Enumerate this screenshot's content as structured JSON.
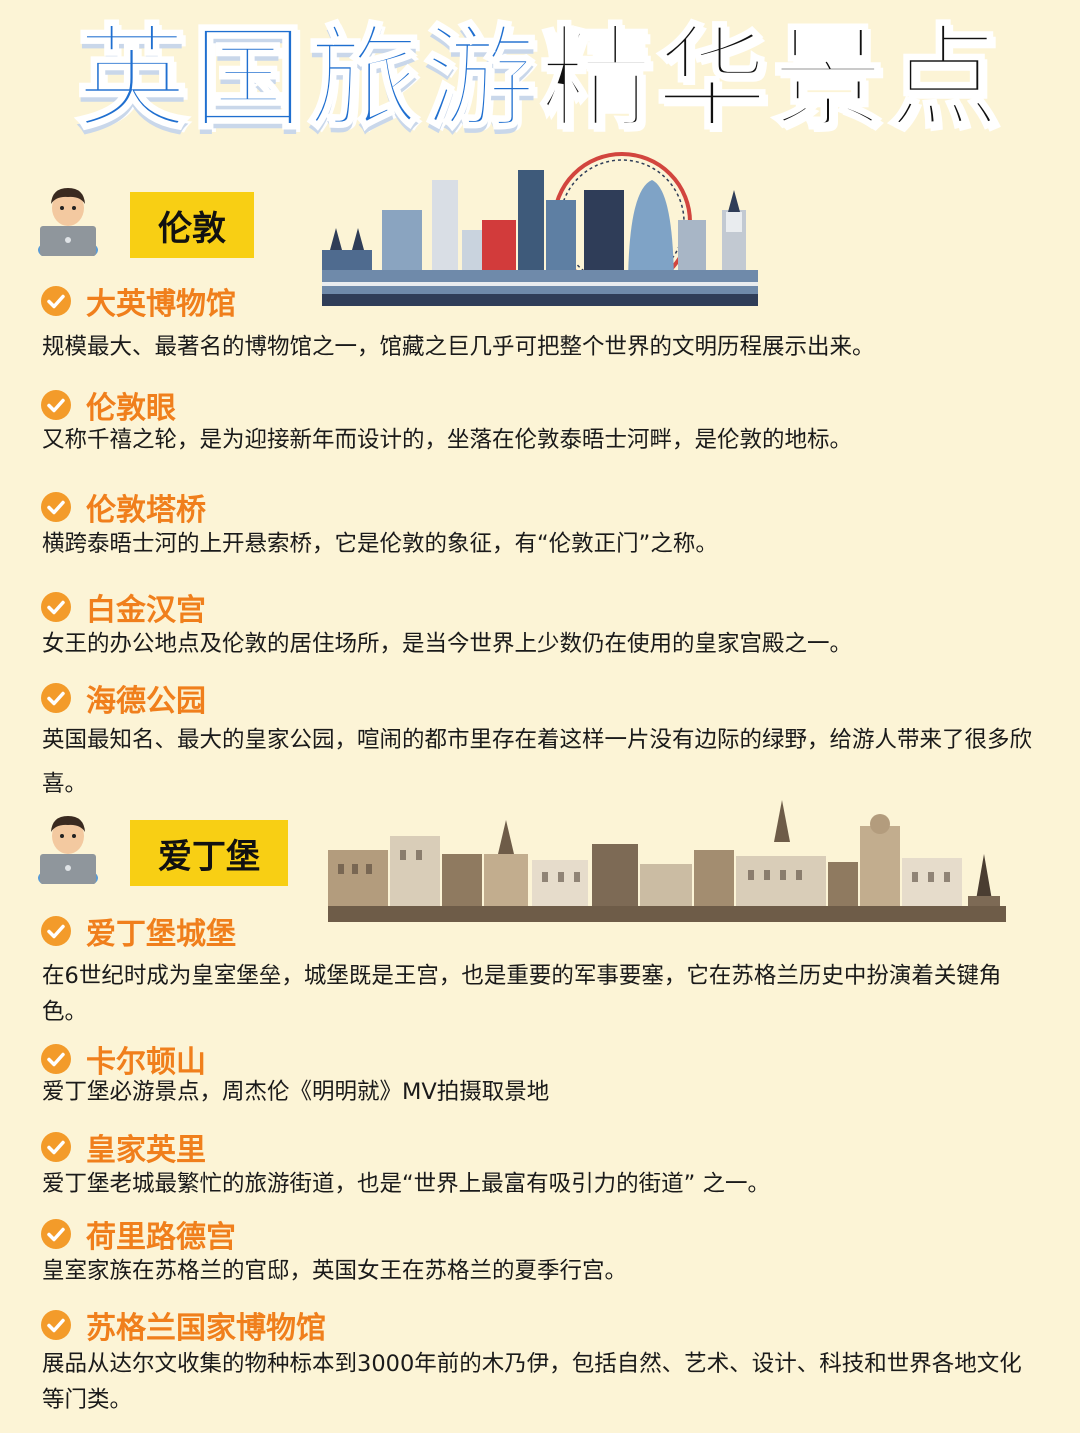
{
  "page": {
    "title_part1": "英国旅游",
    "title_part2": "精华景点"
  },
  "sections": [
    {
      "city": "伦敦",
      "items": [
        {
          "title": "大英博物馆",
          "desc": "规模最大、最著名的博物馆之一，馆藏之巨几乎可把整个世界的文明历程展示出来。"
        },
        {
          "title": "伦敦眼",
          "desc": "又称千禧之轮，是为迎接新年而设计的，坐落在伦敦泰晤士河畔，是伦敦的地标。"
        },
        {
          "title": "伦敦塔桥",
          "desc": "横跨泰晤士河的上开悬索桥，它是伦敦的象征，有“伦敦正门”之称。"
        },
        {
          "title": "白金汉宫",
          "desc": "女王的办公地点及伦敦的居住场所，是当今世界上少数仍在使用的皇家宫殿之一。"
        },
        {
          "title": "海德公园",
          "desc": "英国最知名、最大的皇家公园，喧闹的都市里存在着这样一片没有边际的绿野，给游人带来了很多欣喜。"
        }
      ]
    },
    {
      "city": "爱丁堡",
      "items": [
        {
          "title": "爱丁堡城堡",
          "desc": "在6世纪时成为皇室堡垒，城堡既是王宫，也是重要的军事要塞，它在苏格兰历史中扮演着关键角色。"
        },
        {
          "title": "卡尔顿山",
          "desc": "爱丁堡必游景点，周杰伦《明明就》MV拍摄取景地"
        },
        {
          "title": "皇家英里",
          "desc": "爱丁堡老城最繁忙的旅游街道，也是“世界上最富有吸引力的街道” 之一。"
        },
        {
          "title": "荷里路德宫",
          "desc": "皇室家族在苏格兰的官邸，英国女王在苏格兰的夏季行宫。"
        },
        {
          "title": "苏格兰国家博物馆",
          "desc": "展品从达尔文收集的物种标本到3000年前的木乃伊，包括自然、艺术、设计、科技和世界各地文化等门类。"
        }
      ]
    }
  ],
  "colors": {
    "background": "#fcf4d6",
    "title_blue": "#1f6fd0",
    "badge_yellow": "#f8cf14",
    "item_orange": "#f07f1c"
  },
  "icons": {
    "avatar": "man-with-laptop-icon",
    "check": "check-circle-icon"
  }
}
